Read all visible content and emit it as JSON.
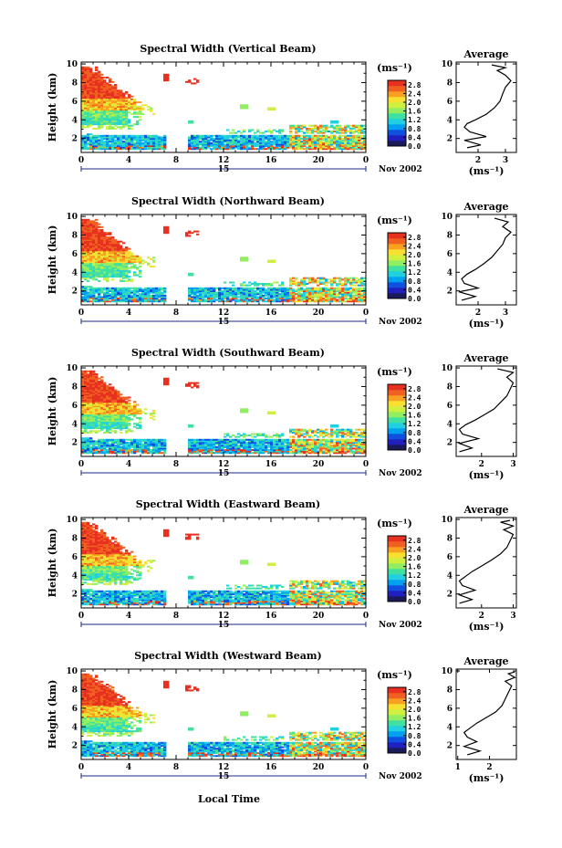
{
  "chart_data": {
    "type": "heatmap",
    "x_axis": {
      "ticks": [
        "0",
        "4",
        "8",
        "12",
        "16",
        "20",
        "0"
      ],
      "xlim": [
        0,
        24
      ],
      "date_label": "15",
      "month_label": "Nov 2002",
      "xlabel": "Local Time"
    },
    "y_axis": {
      "ylabel": "Height (km)",
      "ticks": [
        "2",
        "4",
        "6",
        "8",
        "10"
      ],
      "ylim": [
        0.5,
        10.2
      ]
    },
    "colorbar": {
      "unit_label": "(ms⁻¹)",
      "ticks": [
        "0.0",
        "0.4",
        "0.8",
        "1.2",
        "1.6",
        "2.0",
        "2.4",
        "2.8"
      ],
      "range": [
        0,
        3.0
      ],
      "colors": [
        "#1a1a5a",
        "#2020c0",
        "#1050e0",
        "#00a0f0",
        "#20d0e0",
        "#40e0a0",
        "#90ee60",
        "#d0f040",
        "#f8e030",
        "#f8a020",
        "#f06020",
        "#e83020"
      ]
    },
    "panels": [
      {
        "title": "Spectral Width (Vertical Beam)",
        "avg_title": "Average",
        "avg_xlabel": "(ms⁻¹)",
        "avg_xticks": [
          "2",
          "3"
        ],
        "avg_xlim": [
          1.2,
          3.4
        ],
        "avg_profile": [
          [
            1.6,
            1.0
          ],
          [
            2.1,
            1.3
          ],
          [
            1.5,
            1.8
          ],
          [
            2.3,
            2.2
          ],
          [
            1.7,
            2.7
          ],
          [
            1.5,
            3.2
          ],
          [
            1.6,
            3.6
          ],
          [
            1.9,
            4.0
          ],
          [
            2.3,
            4.6
          ],
          [
            2.6,
            5.3
          ],
          [
            2.8,
            6.0
          ],
          [
            2.9,
            6.8
          ],
          [
            3.0,
            7.5
          ],
          [
            3.2,
            8.2
          ],
          [
            3.0,
            8.8
          ],
          [
            2.7,
            9.3
          ],
          [
            3.0,
            9.6
          ],
          [
            2.5,
            9.9
          ]
        ]
      },
      {
        "title": "Spectral Width (Northward Beam)",
        "avg_title": "Average",
        "avg_xlabel": "(ms⁻¹)",
        "avg_xticks": [
          "2",
          "3"
        ],
        "avg_xlim": [
          1.2,
          3.4
        ],
        "avg_profile": [
          [
            1.4,
            1.0
          ],
          [
            1.9,
            1.4
          ],
          [
            1.3,
            1.9
          ],
          [
            2.0,
            2.3
          ],
          [
            1.5,
            2.8
          ],
          [
            1.4,
            3.3
          ],
          [
            1.6,
            3.8
          ],
          [
            1.9,
            4.3
          ],
          [
            2.2,
            4.9
          ],
          [
            2.5,
            5.6
          ],
          [
            2.7,
            6.3
          ],
          [
            2.9,
            7.0
          ],
          [
            3.0,
            7.7
          ],
          [
            3.2,
            8.3
          ],
          [
            2.9,
            8.9
          ],
          [
            3.1,
            9.4
          ],
          [
            2.6,
            9.8
          ]
        ]
      },
      {
        "title": "Spectral Width (Southward Beam)",
        "avg_title": "Average",
        "avg_xlabel": "(ms⁻¹)",
        "avg_xticks": [
          "2",
          "3"
        ],
        "avg_xlim": [
          1.2,
          3.1
        ],
        "avg_profile": [
          [
            1.3,
            1.0
          ],
          [
            1.7,
            1.4
          ],
          [
            1.3,
            1.9
          ],
          [
            1.9,
            2.4
          ],
          [
            1.4,
            2.9
          ],
          [
            1.3,
            3.4
          ],
          [
            1.5,
            3.9
          ],
          [
            1.8,
            4.4
          ],
          [
            2.1,
            5.0
          ],
          [
            2.4,
            5.6
          ],
          [
            2.6,
            6.3
          ],
          [
            2.8,
            7.0
          ],
          [
            2.9,
            7.7
          ],
          [
            3.0,
            8.4
          ],
          [
            2.8,
            9.0
          ],
          [
            3.0,
            9.5
          ],
          [
            2.5,
            9.9
          ]
        ]
      },
      {
        "title": "Spectral Width (Eastward Beam)",
        "avg_title": "Average",
        "avg_xlabel": "(ms⁻¹)",
        "avg_xticks": [
          "2",
          "3"
        ],
        "avg_xlim": [
          1.2,
          3.1
        ],
        "avg_profile": [
          [
            1.3,
            1.0
          ],
          [
            1.7,
            1.4
          ],
          [
            1.3,
            1.9
          ],
          [
            1.8,
            2.4
          ],
          [
            1.4,
            2.9
          ],
          [
            1.3,
            3.4
          ],
          [
            1.5,
            3.9
          ],
          [
            1.7,
            4.4
          ],
          [
            2.0,
            5.0
          ],
          [
            2.3,
            5.6
          ],
          [
            2.6,
            6.3
          ],
          [
            2.8,
            7.0
          ],
          [
            2.9,
            7.7
          ],
          [
            3.0,
            8.4
          ],
          [
            2.7,
            8.9
          ],
          [
            3.0,
            9.3
          ],
          [
            2.6,
            9.7
          ],
          [
            2.9,
            9.9
          ]
        ]
      },
      {
        "title": "Spectral Width (Westward Beam)",
        "avg_title": "Average",
        "avg_xlabel": "(ms⁻¹)",
        "avg_xticks": [
          "1",
          "2"
        ],
        "avg_xlim": [
          0.95,
          2.85
        ],
        "avg_profile": [
          [
            1.3,
            1.0
          ],
          [
            1.7,
            1.4
          ],
          [
            1.2,
            1.9
          ],
          [
            1.6,
            2.4
          ],
          [
            1.3,
            2.9
          ],
          [
            1.2,
            3.4
          ],
          [
            1.4,
            3.9
          ],
          [
            1.6,
            4.4
          ],
          [
            1.9,
            5.0
          ],
          [
            2.2,
            5.6
          ],
          [
            2.4,
            6.3
          ],
          [
            2.5,
            7.0
          ],
          [
            2.6,
            7.7
          ],
          [
            2.7,
            8.4
          ],
          [
            2.5,
            8.9
          ],
          [
            2.8,
            9.3
          ],
          [
            2.6,
            9.7
          ],
          [
            2.8,
            9.9
          ]
        ]
      }
    ]
  }
}
